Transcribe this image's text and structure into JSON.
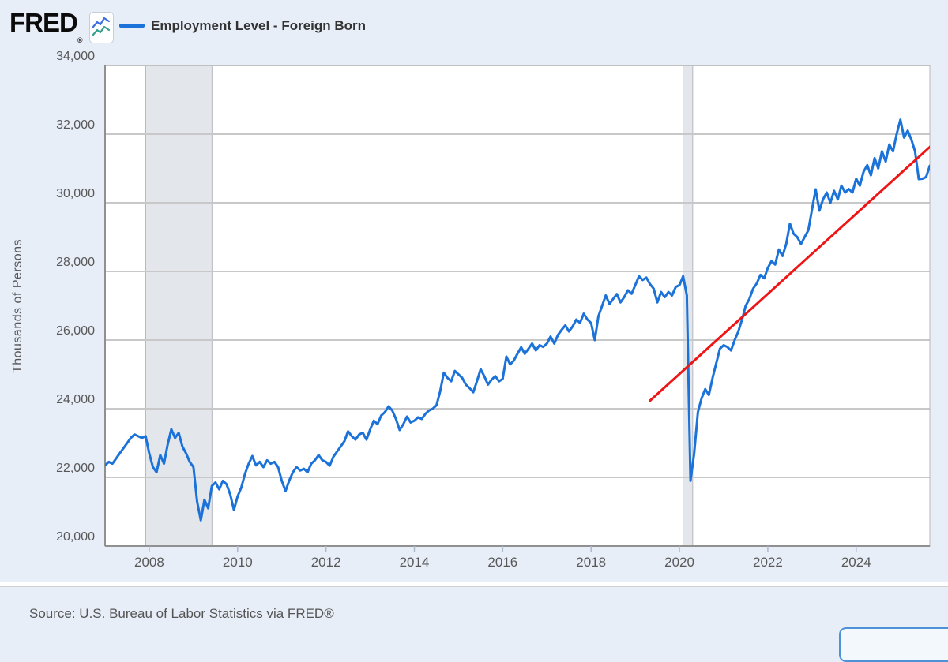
{
  "header": {
    "logo_text": "FRED",
    "logo_registered_mark": "®",
    "legend": {
      "label": "Employment Level - Foreign Born",
      "swatch_color": "#1b72d8"
    }
  },
  "footer": {
    "source_text": "Source: U.S. Bureau of Labor Statistics via FRED®"
  },
  "colors": {
    "page_background": "#e8eef8",
    "plot_background": "#ffffff",
    "gridline": "#c8c8c8",
    "axis_line": "#909090",
    "recession_band_fill": "#e3e6ea",
    "recession_band_edge": "#b4b9c0",
    "series_blue": "#1b72d8",
    "annotation_red": "#ed1515",
    "tick_text": "#585858",
    "button_border": "#4d91d9"
  },
  "chart_data": {
    "type": "line",
    "title": "Employment Level - Foreign Born",
    "xlabel": "",
    "ylabel": "Thousands of Persons",
    "ylim": [
      20000,
      34000
    ],
    "xlim": [
      2007.0,
      2025.667
    ],
    "grid": "horizontal",
    "legend_position": "top-left",
    "y_ticks": [
      20000,
      22000,
      24000,
      26000,
      28000,
      30000,
      32000,
      34000
    ],
    "y_tick_labels": [
      "20,000",
      "22,000",
      "24,000",
      "26,000",
      "28,000",
      "30,000",
      "32,000",
      "34,000"
    ],
    "x_ticks": [
      2008,
      2010,
      2012,
      2014,
      2016,
      2018,
      2020,
      2022,
      2024
    ],
    "x_tick_labels": [
      "2008",
      "2010",
      "2012",
      "2014",
      "2016",
      "2018",
      "2020",
      "2022",
      "2024"
    ],
    "recession_bands": [
      {
        "x1": 2007.92,
        "x2": 2009.42
      },
      {
        "x1": 2020.08,
        "x2": 2020.3
      }
    ],
    "annotation_line": {
      "name": "red-trend-line",
      "color": "#ed1515",
      "x1": 2019.33,
      "y1": 24230,
      "x2": 2025.73,
      "y2": 31700
    },
    "series": [
      {
        "name": "Employment Level - Foreign Born",
        "color": "#1b72d8",
        "frequency": "monthly",
        "x_start": 2007.0,
        "values": [
          22350,
          22450,
          22400,
          22550,
          22700,
          22850,
          23000,
          23150,
          23250,
          23200,
          23150,
          23200,
          22700,
          22300,
          22150,
          22650,
          22400,
          22950,
          23400,
          23150,
          23300,
          22900,
          22700,
          22450,
          22300,
          21300,
          20750,
          21350,
          21100,
          21750,
          21850,
          21650,
          21900,
          21800,
          21500,
          21050,
          21450,
          21700,
          22100,
          22400,
          22620,
          22350,
          22450,
          22300,
          22500,
          22400,
          22450,
          22300,
          21900,
          21600,
          21900,
          22150,
          22300,
          22200,
          22250,
          22150,
          22400,
          22500,
          22650,
          22500,
          22450,
          22340,
          22600,
          22750,
          22900,
          23050,
          23340,
          23200,
          23100,
          23250,
          23300,
          23100,
          23400,
          23650,
          23550,
          23800,
          23900,
          24070,
          23950,
          23700,
          23380,
          23550,
          23770,
          23600,
          23650,
          23750,
          23700,
          23850,
          23950,
          24000,
          24100,
          24500,
          25050,
          24900,
          24800,
          25100,
          25000,
          24900,
          24700,
          24600,
          24480,
          24800,
          25150,
          24950,
          24700,
          24850,
          24950,
          24800,
          24870,
          25520,
          25290,
          25400,
          25600,
          25790,
          25600,
          25750,
          25900,
          25700,
          25850,
          25800,
          25900,
          26100,
          25900,
          26150,
          26300,
          26430,
          26250,
          26400,
          26600,
          26500,
          26770,
          26600,
          26500,
          26000,
          26700,
          27000,
          27300,
          27050,
          27200,
          27340,
          27100,
          27250,
          27450,
          27350,
          27600,
          27860,
          27750,
          27820,
          27630,
          27500,
          27100,
          27400,
          27250,
          27400,
          27300,
          27550,
          27600,
          27860,
          27300,
          21900,
          22700,
          23900,
          24300,
          24570,
          24400,
          24900,
          25330,
          25750,
          25850,
          25800,
          25700,
          26000,
          26250,
          26600,
          27000,
          27200,
          27500,
          27650,
          27900,
          27800,
          28100,
          28300,
          28200,
          28640,
          28450,
          28800,
          29390,
          29100,
          29000,
          28800,
          29000,
          29200,
          29800,
          30390,
          29770,
          30100,
          30300,
          30000,
          30350,
          30100,
          30500,
          30300,
          30400,
          30300,
          30700,
          30500,
          30900,
          31100,
          30800,
          31300,
          31000,
          31500,
          31200,
          31700,
          31500,
          32000,
          32420,
          31900,
          32100,
          31840,
          31500,
          30690,
          30700,
          30750,
          31080
        ]
      }
    ]
  }
}
